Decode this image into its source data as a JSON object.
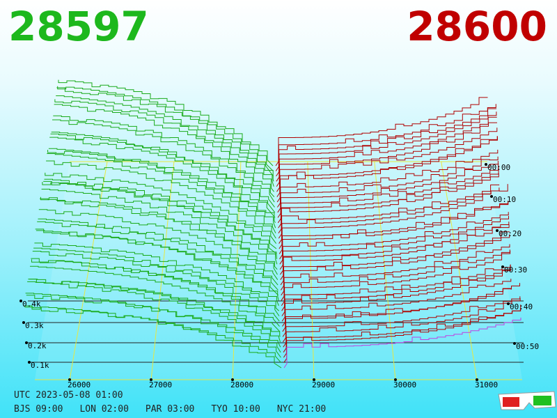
{
  "header": {
    "bid": "28597",
    "ask": "28600"
  },
  "price_axis": {
    "labels": [
      "26000",
      "27000",
      "28000",
      "29000",
      "30000",
      "31000"
    ]
  },
  "volume_axis": {
    "labels": [
      "0.1k",
      "0.2k",
      "0.3k",
      "0.4k"
    ]
  },
  "time_axis": {
    "labels": [
      "00:00",
      "00:10",
      "00:20",
      "00:30",
      "00:40",
      "00:50"
    ]
  },
  "footer": {
    "utc": "UTC 2023-05-08 01:00",
    "cities": [
      "BJS 09:00",
      "LON 02:00",
      "PAR 03:00",
      "TYO 10:00",
      "NYC 21:00"
    ]
  }
}
